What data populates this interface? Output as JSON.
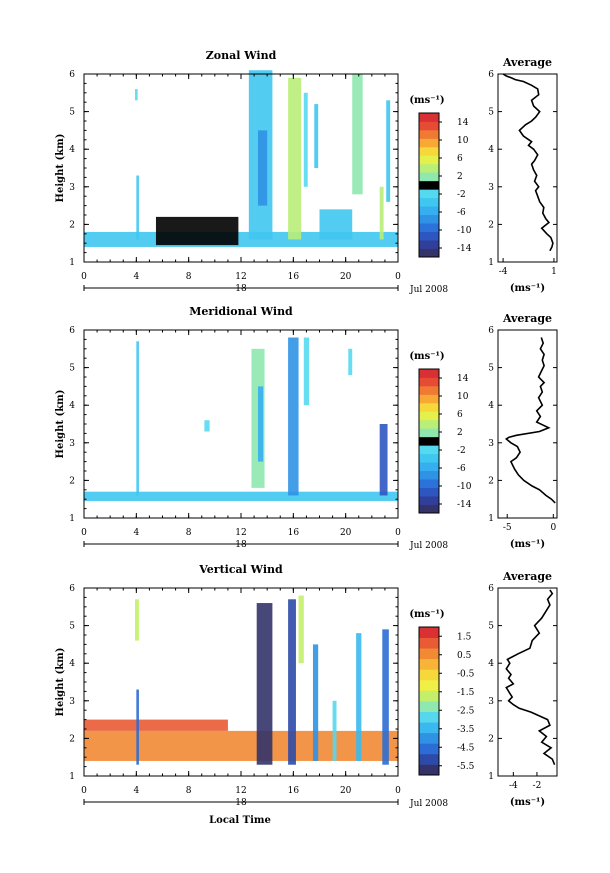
{
  "figure": {
    "bottom_xlabel": "Local Time",
    "colors_wind": [
      "#33336a",
      "#2f3f9a",
      "#2d56c0",
      "#2b73d8",
      "#2f92e4",
      "#35aff0",
      "#3fc7f0",
      "#55d9ef",
      "#000000",
      "#8fe8b0",
      "#b9ee78",
      "#e6f04c",
      "#f7d83a",
      "#f7a835",
      "#f07a33",
      "#e74b34",
      "#d93033"
    ],
    "colors_vertical": [
      "#33336a",
      "#2d4aa8",
      "#2b6dd4",
      "#2f92e4",
      "#3ab9f0",
      "#56d7ed",
      "#8fe8b0",
      "#c4ef6a",
      "#f0ef45",
      "#f7d83a",
      "#f7b437",
      "#f28a34",
      "#e95b34",
      "#d93033"
    ]
  },
  "chart_data": [
    {
      "type": "heatmap",
      "title": "Zonal Wind",
      "ylabel": "Height (km)",
      "ylim": [
        1,
        6
      ],
      "yticks": [
        "1",
        "2",
        "3",
        "4",
        "5",
        "6"
      ],
      "xlim": [
        0,
        24
      ],
      "xticks": [
        "0",
        "4",
        "8",
        "12",
        "16",
        "20",
        "0"
      ],
      "day_label": "18",
      "date_label": "Jul 2008",
      "colorbar_unit": "(ms⁻¹)",
      "colorbar_ticks": [
        "14",
        "10",
        "6",
        "2",
        "-2",
        "-6",
        "-10",
        "-14"
      ],
      "colorbar_range": [
        -16,
        16
      ],
      "zero_line": 0,
      "observations": [
        {
          "x": [
            0,
            24
          ],
          "y": [
            1.4,
            1.8
          ],
          "value": -3
        },
        {
          "x": [
            5.5,
            11.8
          ],
          "y": [
            1.45,
            2.2
          ],
          "value": 0
        },
        {
          "x": [
            12.6,
            14.4
          ],
          "y": [
            1.6,
            6.1
          ],
          "value": -4
        },
        {
          "x": [
            13.3,
            14.0
          ],
          "y": [
            2.5,
            4.5
          ],
          "value": -8
        },
        {
          "x": [
            15.6,
            16.6
          ],
          "y": [
            1.6,
            5.9
          ],
          "value": 3
        },
        {
          "x": [
            16.8,
            17.1
          ],
          "y": [
            3.0,
            5.5
          ],
          "value": -2
        },
        {
          "x": [
            17.6,
            17.9
          ],
          "y": [
            3.5,
            5.2
          ],
          "value": -3
        },
        {
          "x": [
            18.0,
            20.5
          ],
          "y": [
            1.6,
            2.4
          ],
          "value": -4
        },
        {
          "x": [
            20.5,
            21.3
          ],
          "y": [
            2.8,
            6.0
          ],
          "value": 1
        },
        {
          "x": [
            22.6,
            22.9
          ],
          "y": [
            1.6,
            3.0
          ],
          "value": 4
        },
        {
          "x": [
            23.1,
            23.4
          ],
          "y": [
            2.6,
            5.3
          ],
          "value": -3
        },
        {
          "x": [
            4.0,
            4.2
          ],
          "y": [
            1.6,
            3.3
          ],
          "value": -3
        },
        {
          "x": [
            3.9,
            4.1
          ],
          "y": [
            5.3,
            5.6
          ],
          "value": -2
        }
      ]
    },
    {
      "type": "heatmap",
      "title": "Meridional Wind",
      "ylabel": "Height (km)",
      "ylim": [
        1,
        6
      ],
      "yticks": [
        "1",
        "2",
        "3",
        "4",
        "5",
        "6"
      ],
      "xlim": [
        0,
        24
      ],
      "xticks": [
        "0",
        "4",
        "8",
        "12",
        "16",
        "20",
        "0"
      ],
      "day_label": "18",
      "date_label": "Jul 2008",
      "colorbar_unit": "(ms⁻¹)",
      "colorbar_ticks": [
        "14",
        "10",
        "6",
        "2",
        "-2",
        "-6",
        "-10",
        "-14"
      ],
      "colorbar_range": [
        -16,
        16
      ],
      "zero_line": 0,
      "observations": [
        {
          "x": [
            0,
            24
          ],
          "y": [
            1.45,
            1.7
          ],
          "value": -3
        },
        {
          "x": [
            12.8,
            13.8
          ],
          "y": [
            1.8,
            5.5
          ],
          "value": 2
        },
        {
          "x": [
            13.3,
            13.7
          ],
          "y": [
            2.5,
            4.5
          ],
          "value": -6
        },
        {
          "x": [
            15.6,
            16.4
          ],
          "y": [
            1.6,
            5.8
          ],
          "value": -8
        },
        {
          "x": [
            16.8,
            17.2
          ],
          "y": [
            4.0,
            5.8
          ],
          "value": -2
        },
        {
          "x": [
            22.6,
            23.2
          ],
          "y": [
            1.6,
            3.5
          ],
          "value": -12
        },
        {
          "x": [
            4.0,
            4.2
          ],
          "y": [
            1.6,
            5.7
          ],
          "value": -3
        },
        {
          "x": [
            20.2,
            20.5
          ],
          "y": [
            4.8,
            5.5
          ],
          "value": -2
        },
        {
          "x": [
            9.2,
            9.6
          ],
          "y": [
            3.3,
            3.6
          ],
          "value": -2
        }
      ]
    },
    {
      "type": "heatmap",
      "title": "Vertical Wind",
      "ylabel": "Height (km)",
      "ylim": [
        1,
        6
      ],
      "yticks": [
        "1",
        "2",
        "3",
        "4",
        "5",
        "6"
      ],
      "xlim": [
        0,
        24
      ],
      "xticks": [
        "0",
        "4",
        "8",
        "12",
        "16",
        "20",
        "0"
      ],
      "day_label": "18",
      "date_label": "Jul 2008",
      "colorbar_unit": "(ms⁻¹)",
      "colorbar_ticks": [
        "1.5",
        "0.5",
        "-0.5",
        "-1.5",
        "-2.5",
        "-3.5",
        "-4.5",
        "-5.5"
      ],
      "colorbar_range": [
        -6,
        2
      ],
      "observations": [
        {
          "x": [
            0,
            24
          ],
          "y": [
            1.4,
            2.2
          ],
          "value": 0.8
        },
        {
          "x": [
            0,
            11
          ],
          "y": [
            2.2,
            2.5
          ],
          "value": 1.2
        },
        {
          "x": [
            13.2,
            14.4
          ],
          "y": [
            1.3,
            5.6
          ],
          "value": -5.5
        },
        {
          "x": [
            15.6,
            16.2
          ],
          "y": [
            1.3,
            5.7
          ],
          "value": -5.2
        },
        {
          "x": [
            16.4,
            16.8
          ],
          "y": [
            4.0,
            5.8
          ],
          "value": -1.5
        },
        {
          "x": [
            17.5,
            17.9
          ],
          "y": [
            1.4,
            4.5
          ],
          "value": -4
        },
        {
          "x": [
            19.0,
            19.3
          ],
          "y": [
            1.4,
            3.0
          ],
          "value": -3
        },
        {
          "x": [
            20.8,
            21.2
          ],
          "y": [
            1.4,
            4.8
          ],
          "value": -3.5
        },
        {
          "x": [
            22.8,
            23.3
          ],
          "y": [
            1.3,
            4.9
          ],
          "value": -4.5
        },
        {
          "x": [
            4.0,
            4.2
          ],
          "y": [
            1.3,
            3.3
          ],
          "value": -4.5
        },
        {
          "x": [
            3.9,
            4.2
          ],
          "y": [
            4.6,
            5.7
          ],
          "value": -2
        }
      ]
    },
    {
      "type": "line",
      "title": "Average",
      "xlabel": "(ms⁻¹)",
      "ylim": [
        1,
        6
      ],
      "yticks": [
        "1",
        "2",
        "3",
        "4",
        "5",
        "6"
      ],
      "xlim": [
        -4.5,
        1.3
      ],
      "xticks": [
        {
          "value": -4,
          "label": "-4"
        },
        {
          "value": 1,
          "label": "1"
        }
      ],
      "series": [
        {
          "x": [
            0.6,
            0.8,
            0.9,
            0.7,
            0.3,
            -0.2,
            0.5,
            0.2,
            -0.1,
            0.0,
            -0.4,
            -0.6,
            -0.8,
            -0.5,
            -0.9,
            -0.7,
            -1.0,
            -1.2,
            -0.9,
            -0.6,
            -1.0,
            -1.5,
            -1.2,
            -2.0,
            -2.4,
            -1.8,
            -1.2,
            -0.8,
            -0.4,
            -1.0,
            -1.2,
            -0.5,
            -0.6,
            -1.2,
            -2.0,
            -2.8,
            -3.2,
            -3.7,
            -4.0
          ],
          "y": [
            1.3,
            1.4,
            1.5,
            1.65,
            1.75,
            1.9,
            2.05,
            2.15,
            2.3,
            2.45,
            2.6,
            2.75,
            2.9,
            3.0,
            3.15,
            3.3,
            3.45,
            3.6,
            3.7,
            3.85,
            4.0,
            4.1,
            4.2,
            4.35,
            4.5,
            4.65,
            4.75,
            4.85,
            5.0,
            5.15,
            5.3,
            5.45,
            5.6,
            5.7,
            5.8,
            5.85,
            5.9,
            5.95,
            6.0
          ]
        }
      ]
    },
    {
      "type": "line",
      "title": "Average",
      "xlabel": "(ms⁻¹)",
      "ylim": [
        1,
        6
      ],
      "yticks": [
        "1",
        "2",
        "3",
        "4",
        "5",
        "6"
      ],
      "xlim": [
        -6,
        0.4
      ],
      "xticks": [
        {
          "value": -5,
          "label": "-5"
        },
        {
          "value": 0,
          "label": "0"
        }
      ],
      "series": [
        {
          "x": [
            0.2,
            -0.2,
            -0.8,
            -1.5,
            -2.3,
            -3.2,
            -3.8,
            -4.2,
            -4.6,
            -4.0,
            -3.6,
            -3.9,
            -4.6,
            -5.1,
            -4.8,
            -4.0,
            -1.5,
            -0.5,
            -1.8,
            -1.4,
            -1.8,
            -1.2,
            -1.6,
            -1.2,
            -1.4,
            -1.0,
            -1.6,
            -1.3,
            -1.0,
            -1.2,
            -1.0,
            -1.4,
            -1.1,
            -1.3
          ],
          "y": [
            1.4,
            1.5,
            1.6,
            1.75,
            1.85,
            2.0,
            2.15,
            2.3,
            2.5,
            2.6,
            2.75,
            2.9,
            3.0,
            3.1,
            3.15,
            3.2,
            3.3,
            3.4,
            3.55,
            3.7,
            3.85,
            4.0,
            4.2,
            4.35,
            4.5,
            4.6,
            4.75,
            4.9,
            5.05,
            5.2,
            5.35,
            5.5,
            5.65,
            5.8
          ]
        }
      ]
    },
    {
      "type": "line",
      "title": "Average",
      "xlabel": "(ms⁻¹)",
      "ylim": [
        1,
        6
      ],
      "yticks": [
        "1",
        "2",
        "3",
        "4",
        "5",
        "6"
      ],
      "xlim": [
        -5.3,
        -0.3
      ],
      "xticks": [
        {
          "value": -4,
          "label": "-4"
        },
        {
          "value": -2,
          "label": "-2"
        }
      ],
      "series": [
        {
          "x": [
            -0.5,
            -0.7,
            -1.4,
            -0.8,
            -1.6,
            -1.2,
            -1.8,
            -0.9,
            -1.1,
            -2.5,
            -3.5,
            -4.0,
            -4.4,
            -4.1,
            -4.3,
            -4.6,
            -4.0,
            -4.4,
            -4.2,
            -4.6,
            -4.3,
            -4.5,
            -3.6,
            -2.6,
            -2.4,
            -1.8,
            -2.2,
            -1.6,
            -1.2,
            -0.9,
            -1.1,
            -0.7,
            -0.9
          ],
          "y": [
            1.3,
            1.45,
            1.6,
            1.75,
            1.9,
            2.05,
            2.2,
            2.35,
            2.5,
            2.7,
            2.8,
            2.9,
            3.0,
            3.1,
            3.2,
            3.35,
            3.45,
            3.6,
            3.7,
            3.85,
            4.0,
            4.1,
            4.25,
            4.4,
            4.6,
            4.8,
            5.0,
            5.2,
            5.4,
            5.55,
            5.7,
            5.85,
            5.95
          ]
        }
      ]
    }
  ]
}
